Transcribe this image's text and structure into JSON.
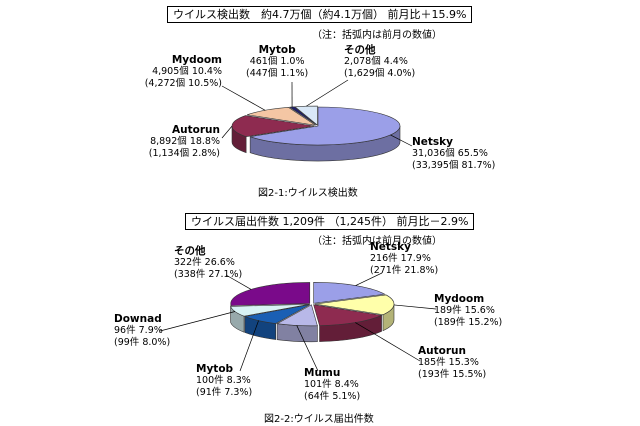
{
  "chart_data": [
    {
      "type": "pie",
      "title": "ウイルス検出数　約4.7万個（約4.1万個） 前月比＋15.9%",
      "note": "（注：括弧内は前月の数値）",
      "caption": "図2-1:ウイルス検出数",
      "slices": [
        {
          "name": "Netsky",
          "value": 31036,
          "count": "31,036個",
          "pct": "65.5%",
          "prev": "(33,395個  81.7%)",
          "color": "#9b9fe8"
        },
        {
          "name": "Autorun",
          "value": 8892,
          "count": "8,892個",
          "pct": "18.8%",
          "prev": "(1,134個  2.8%)",
          "color": "#8e2b50"
        },
        {
          "name": "Mydoom",
          "value": 4905,
          "count": "4,905個",
          "pct": "10.4%",
          "prev": "(4,272個  10.5%)",
          "color": "#f4c6a4"
        },
        {
          "name": "Mytob",
          "value": 461,
          "count": "461個",
          "pct": "1.0%",
          "prev": "(447個  1.1%)",
          "color": "#1f1f6e"
        },
        {
          "name": "その他",
          "value": 2078,
          "count": "2,078個",
          "pct": "4.4%",
          "prev": "(1,629個  4.0%)",
          "color": "#d9e8f7"
        }
      ]
    },
    {
      "type": "pie",
      "title": "ウイルス届出件数 1,209件 （1,245件） 前月比－2.9%",
      "note": "（注：括弧内は前月の数値）",
      "caption": "図2-2:ウイルス届出件数",
      "slices": [
        {
          "name": "Netsky",
          "value": 216,
          "count": "216件",
          "pct": "17.9%",
          "prev": "(271件  21.8%)",
          "color": "#9b9fe8"
        },
        {
          "name": "Mydoom",
          "value": 189,
          "count": "189件",
          "pct": "15.6%",
          "prev": "(189件  15.2%)",
          "color": "#ffffaa"
        },
        {
          "name": "Autorun",
          "value": 185,
          "count": "185件",
          "pct": "15.3%",
          "prev": "(193件  15.5%)",
          "color": "#8e2b50"
        },
        {
          "name": "Mumu",
          "value": 101,
          "count": "101件",
          "pct": "8.4%",
          "prev": "(64件  5.1%)",
          "color": "#b8b8e8"
        },
        {
          "name": "Mytob",
          "value": 100,
          "count": "100件",
          "pct": "8.3%",
          "prev": "(91件  7.3%)",
          "color": "#1a5fb4"
        },
        {
          "name": "Downad",
          "value": 96,
          "count": "96件",
          "pct": "7.9%",
          "prev": "(99件  8.0%)",
          "color": "#d8f2f4"
        },
        {
          "name": "その他",
          "value": 322,
          "count": "322件",
          "pct": "26.6%",
          "prev": "(338件  27.1%)",
          "color": "#7a0a8a"
        }
      ]
    }
  ]
}
